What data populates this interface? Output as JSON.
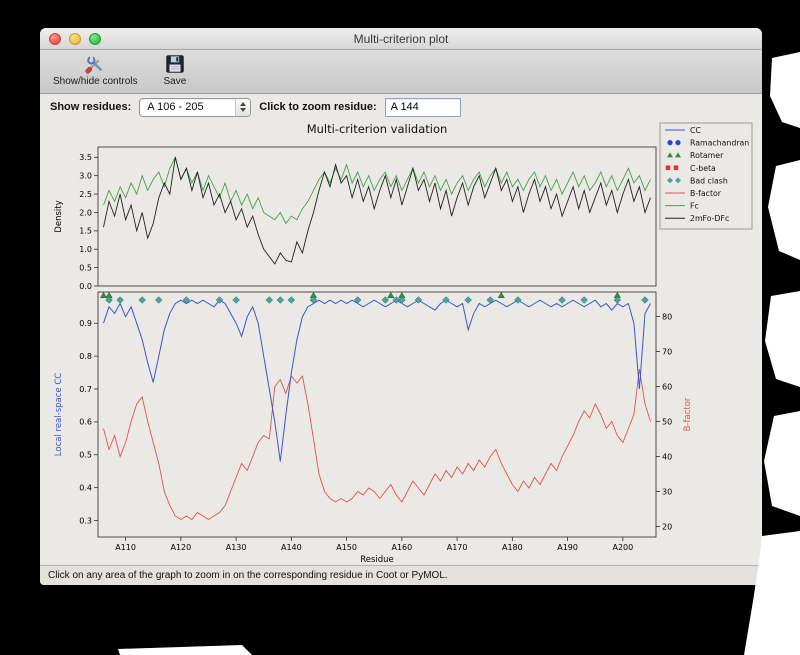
{
  "window": {
    "title": "Multi-criterion plot",
    "toolbar": {
      "show_hide_label": "Show/hide controls",
      "save_label": "Save"
    },
    "controls": {
      "show_residues_label": "Show residues:",
      "residue_range_value": "A 106 - 205",
      "zoom_label": "Click to zoom residue:",
      "zoom_value": "A 144"
    },
    "status_text": "Click on any area of the graph to zoom in on the corresponding residue in Coot or PyMOL."
  },
  "chart_data": {
    "type": "line",
    "title": "Multi-criterion validation",
    "xlabel": "Residue",
    "x_start": 106,
    "x_step": 1,
    "xlim": [
      105,
      206
    ],
    "x_ticks": [
      110,
      120,
      130,
      140,
      150,
      160,
      170,
      180,
      190,
      200
    ],
    "x_tick_prefix": "A",
    "top_plot": {
      "ylabel": "Density",
      "ylim": [
        0,
        3.78
      ],
      "yticks": [
        0.0,
        0.5,
        1.0,
        1.5,
        2.0,
        2.5,
        3.0,
        3.5
      ],
      "series": [
        {
          "name": "Fc",
          "color": "#4a9e4a",
          "values": [
            2.2,
            2.6,
            2.3,
            2.7,
            2.4,
            2.8,
            2.5,
            3.0,
            2.6,
            2.9,
            3.1,
            2.7,
            3.2,
            3.5,
            2.9,
            3.2,
            2.8,
            3.1,
            2.6,
            3.0,
            2.7,
            2.4,
            2.8,
            2.3,
            2.6,
            2.2,
            2.5,
            2.1,
            2.4,
            2.0,
            1.9,
            1.8,
            2.0,
            1.7,
            1.9,
            1.8,
            2.1,
            2.3,
            2.6,
            2.9,
            3.1,
            2.8,
            3.2,
            2.9,
            3.3,
            2.8,
            3.1,
            2.7,
            3.0,
            2.6,
            2.9,
            3.1,
            2.7,
            3.0,
            2.6,
            2.9,
            3.2,
            2.8,
            3.1,
            2.7,
            3.0,
            2.6,
            2.9,
            2.5,
            2.8,
            3.0,
            2.6,
            2.9,
            3.1,
            2.7,
            3.0,
            3.2,
            2.8,
            3.1,
            2.7,
            2.9,
            2.6,
            2.9,
            3.1,
            2.7,
            3.0,
            2.6,
            2.9,
            2.5,
            2.8,
            3.1,
            2.7,
            3.0,
            2.6,
            2.8,
            3.1,
            2.7,
            3.0,
            2.6,
            2.9,
            3.2,
            2.8,
            3.0,
            2.6,
            2.9
          ]
        },
        {
          "name": "2mFo-DFc",
          "color": "#222222",
          "values": [
            1.6,
            2.3,
            1.9,
            2.5,
            1.8,
            2.2,
            1.5,
            2.0,
            1.3,
            1.7,
            2.4,
            2.8,
            2.5,
            3.5,
            2.9,
            3.2,
            2.6,
            3.1,
            2.4,
            2.8,
            2.2,
            2.5,
            2.0,
            2.3,
            1.8,
            2.1,
            1.6,
            1.9,
            1.4,
            1.0,
            0.8,
            0.6,
            0.9,
            0.7,
            0.65,
            1.2,
            0.9,
            1.5,
            2.0,
            2.6,
            3.1,
            2.7,
            3.3,
            2.8,
            3.0,
            2.4,
            2.9,
            2.3,
            2.7,
            2.1,
            2.6,
            3.0,
            2.4,
            2.9,
            2.2,
            2.7,
            3.2,
            2.6,
            2.9,
            2.3,
            2.8,
            2.1,
            2.6,
            1.9,
            2.4,
            2.8,
            2.2,
            2.7,
            3.0,
            2.4,
            2.8,
            3.2,
            2.6,
            2.9,
            2.3,
            2.7,
            2.0,
            2.5,
            2.9,
            2.3,
            2.7,
            2.1,
            2.5,
            1.9,
            2.3,
            2.7,
            2.1,
            2.6,
            2.0,
            2.4,
            2.8,
            2.2,
            2.6,
            2.0,
            2.5,
            2.9,
            2.3,
            2.7,
            2.0,
            2.4
          ]
        }
      ]
    },
    "bottom_plot": {
      "left_ylabel": "Local real-space CC",
      "left_color": "#3b55cc",
      "left_ylim": [
        0.25,
        0.995
      ],
      "left_yticks": [
        0.3,
        0.4,
        0.5,
        0.6,
        0.7,
        0.8,
        0.9
      ],
      "right_ylabel": "B-factor",
      "right_color": "#e0544a",
      "right_ylim": [
        17,
        87
      ],
      "right_yticks": [
        20,
        30,
        40,
        50,
        60,
        70,
        80
      ],
      "cc_series": {
        "name": "CC",
        "color": "#3b55cc",
        "values": [
          0.9,
          0.95,
          0.93,
          0.96,
          0.92,
          0.95,
          0.9,
          0.85,
          0.78,
          0.72,
          0.8,
          0.88,
          0.93,
          0.96,
          0.97,
          0.96,
          0.97,
          0.96,
          0.97,
          0.96,
          0.95,
          0.97,
          0.96,
          0.93,
          0.9,
          0.86,
          0.92,
          0.95,
          0.9,
          0.8,
          0.7,
          0.6,
          0.48,
          0.62,
          0.75,
          0.85,
          0.92,
          0.95,
          0.96,
          0.97,
          0.96,
          0.97,
          0.96,
          0.97,
          0.96,
          0.97,
          0.96,
          0.95,
          0.96,
          0.97,
          0.96,
          0.95,
          0.96,
          0.97,
          0.96,
          0.95,
          0.96,
          0.97,
          0.96,
          0.95,
          0.94,
          0.96,
          0.97,
          0.96,
          0.95,
          0.96,
          0.88,
          0.93,
          0.96,
          0.95,
          0.96,
          0.97,
          0.96,
          0.95,
          0.96,
          0.97,
          0.96,
          0.95,
          0.96,
          0.97,
          0.96,
          0.95,
          0.96,
          0.95,
          0.96,
          0.97,
          0.96,
          0.95,
          0.96,
          0.97,
          0.95,
          0.96,
          0.94,
          0.96,
          0.95,
          0.96,
          0.9,
          0.7,
          0.93,
          0.96
        ]
      },
      "bfactor_series": {
        "name": "B-factor",
        "color": "#e0544a",
        "values": [
          48,
          42,
          46,
          40,
          44,
          50,
          55,
          57,
          50,
          44,
          38,
          30,
          26,
          23,
          22,
          23,
          22,
          24,
          23,
          22,
          23,
          24,
          26,
          30,
          34,
          38,
          36,
          40,
          44,
          46,
          45,
          60,
          62,
          58,
          63,
          61,
          63,
          55,
          45,
          35,
          30,
          28,
          27,
          28,
          27,
          28,
          30,
          29,
          31,
          30,
          28,
          30,
          32,
          29,
          27,
          30,
          33,
          31,
          29,
          32,
          35,
          33,
          36,
          34,
          37,
          35,
          38,
          36,
          39,
          37,
          40,
          42,
          38,
          35,
          32,
          30,
          33,
          31,
          34,
          32,
          35,
          38,
          36,
          40,
          43,
          46,
          50,
          53,
          51,
          55,
          52,
          48,
          50,
          46,
          44,
          48,
          52,
          65,
          55,
          50
        ]
      },
      "clash_residues": [
        107,
        109,
        113,
        116,
        121,
        127,
        130,
        136,
        138,
        140,
        144,
        152,
        157,
        159,
        160,
        163,
        168,
        172,
        176,
        181,
        189,
        193,
        199,
        204
      ],
      "rotamer_residues": [
        106,
        107,
        144,
        158,
        160,
        178,
        199
      ],
      "ramachandran_residues": [],
      "cbeta_residues": []
    },
    "marker_colors": {
      "clash": "#4aa49e",
      "rotamer": "#3c8a3c",
      "ramachandran": "#2b46c8",
      "cbeta": "#cc3b35"
    },
    "legend": [
      {
        "label": "CC",
        "glyph": "line",
        "color": "#3b55cc"
      },
      {
        "label": "Ramachandran",
        "glyph": "circles",
        "color": "#2b46c8"
      },
      {
        "label": "Rotamer",
        "glyph": "triangles",
        "color": "#3c8a3c"
      },
      {
        "label": "C-beta",
        "glyph": "squares",
        "color": "#cc3b35"
      },
      {
        "label": "Bad clash",
        "glyph": "diamonds",
        "color": "#4aa49e"
      },
      {
        "label": "B-factor",
        "glyph": "line",
        "color": "#e0544a"
      },
      {
        "label": "Fc",
        "glyph": "line",
        "color": "#4a9e4a"
      },
      {
        "label": "2mFo-DFc",
        "glyph": "line",
        "color": "#222222"
      }
    ],
    "legend_position": "upper right outside"
  }
}
